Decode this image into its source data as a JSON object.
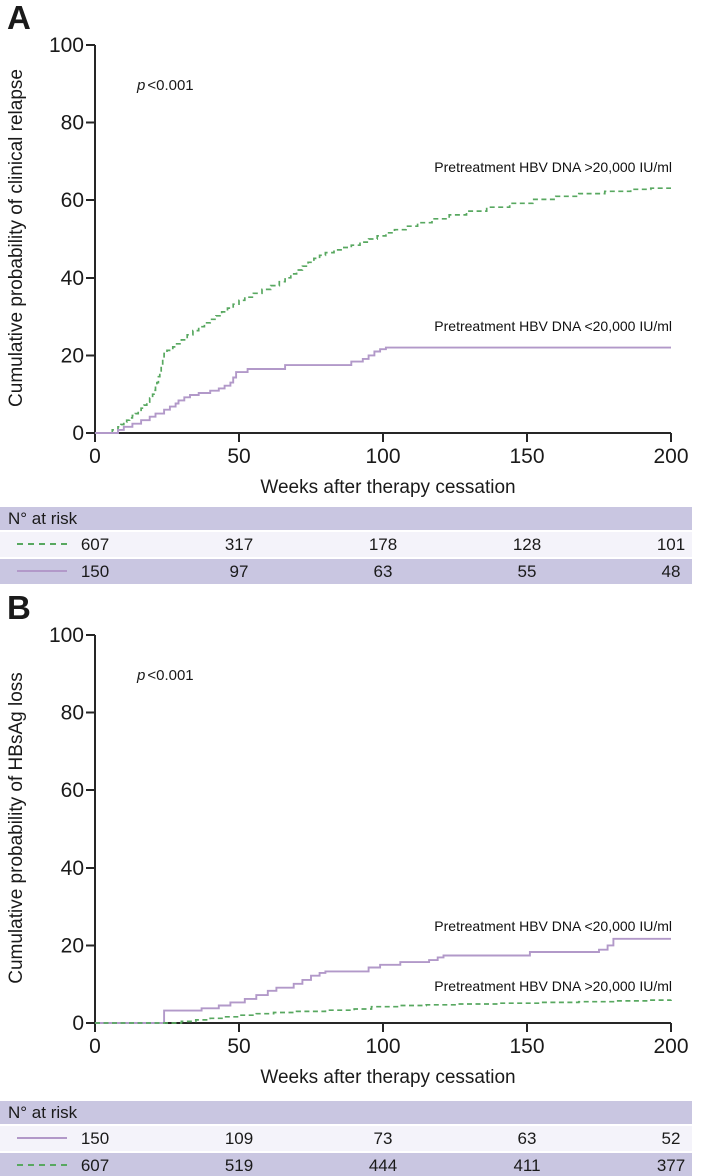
{
  "chart_data": [
    {
      "type": "line",
      "subtype": "kaplan-meier-step",
      "panel": "A",
      "xlabel": "Weeks after therapy cessation",
      "ylabel": "Cumulative probability of clinical relapse",
      "p_label": {
        "italic": "p",
        "text": "<0.001"
      },
      "xlim": [
        0,
        200
      ],
      "ylim": [
        0,
        100
      ],
      "x_ticks": [
        0,
        50,
        100,
        150,
        200
      ],
      "y_ticks": [
        0,
        20,
        40,
        60,
        80,
        100
      ],
      "grid": false,
      "legend_position": "inline-annotations",
      "series": [
        {
          "name": "Pretreatment HBV DNA >20,000 IU/ml",
          "color": "#58a860",
          "style": "dashed",
          "label_y": 68.5,
          "points": [
            [
              0,
              0
            ],
            [
              4,
              0
            ],
            [
              6,
              0.8
            ],
            [
              8,
              1.6
            ],
            [
              9,
              2.2
            ],
            [
              10,
              2.8
            ],
            [
              11,
              3.3
            ],
            [
              12,
              3.9
            ],
            [
              13,
              4.5
            ],
            [
              14,
              5
            ],
            [
              15,
              5.6
            ],
            [
              16,
              6.4
            ],
            [
              17,
              7.2
            ],
            [
              18,
              8
            ],
            [
              19,
              9
            ],
            [
              20,
              10
            ],
            [
              20.5,
              11
            ],
            [
              21,
              12
            ],
            [
              21.5,
              13
            ],
            [
              22,
              14.5
            ],
            [
              22.5,
              16
            ],
            [
              23,
              17.5
            ],
            [
              23.5,
              19
            ],
            [
              24,
              20.5
            ],
            [
              25,
              21.3
            ],
            [
              27,
              22.2
            ],
            [
              28,
              23
            ],
            [
              30,
              24
            ],
            [
              32,
              25.3
            ],
            [
              34,
              26.4
            ],
            [
              36,
              27.4
            ],
            [
              38,
              28.4
            ],
            [
              40,
              29.3
            ],
            [
              42,
              30.2
            ],
            [
              44,
              31.2
            ],
            [
              46,
              32.2
            ],
            [
              48,
              33.2
            ],
            [
              50,
              34.2
            ],
            [
              52,
              35
            ],
            [
              55,
              36
            ],
            [
              58,
              37
            ],
            [
              61,
              38
            ],
            [
              64,
              39
            ],
            [
              66,
              40
            ],
            [
              68,
              41
            ],
            [
              70,
              42
            ],
            [
              72,
              43
            ],
            [
              74,
              44
            ],
            [
              76,
              45
            ],
            [
              78,
              45.8
            ],
            [
              80,
              46.5
            ],
            [
              83,
              47.2
            ],
            [
              86,
              47.8
            ],
            [
              89,
              48.4
            ],
            [
              92,
              49.2
            ],
            [
              95,
              50
            ],
            [
              98,
              50.8
            ],
            [
              101,
              51.6
            ],
            [
              104,
              52.4
            ],
            [
              108,
              53.3
            ],
            [
              112,
              54.2
            ],
            [
              117,
              55.2
            ],
            [
              123,
              56.2
            ],
            [
              129,
              57.2
            ],
            [
              136,
              58.2
            ],
            [
              144,
              59.2
            ],
            [
              152,
              60.2
            ],
            [
              160,
              61
            ],
            [
              168,
              61.7
            ],
            [
              177,
              62.3
            ],
            [
              186,
              62.8
            ],
            [
              193,
              63.1
            ],
            [
              200,
              63.1
            ]
          ]
        },
        {
          "name": "Pretreatment HBV DNA <20,000 IU/ml",
          "color": "#b299c9",
          "style": "solid",
          "label_y": 27.5,
          "points": [
            [
              0,
              0
            ],
            [
              7,
              0
            ],
            [
              8,
              0.8
            ],
            [
              10,
              1.6
            ],
            [
              13,
              2.4
            ],
            [
              16,
              3.3
            ],
            [
              19,
              4.2
            ],
            [
              21,
              5
            ],
            [
              24,
              6
            ],
            [
              26,
              6.8
            ],
            [
              28,
              7.6
            ],
            [
              29,
              8.4
            ],
            [
              31,
              9.2
            ],
            [
              33,
              9.8
            ],
            [
              36,
              10.3
            ],
            [
              40,
              10.9
            ],
            [
              43,
              11.5
            ],
            [
              45,
              12.2
            ],
            [
              47,
              13
            ],
            [
              48,
              14.3
            ],
            [
              49,
              15.7
            ],
            [
              53,
              16.5
            ],
            [
              66,
              17.5
            ],
            [
              89,
              18.4
            ],
            [
              93,
              19.1
            ],
            [
              95,
              20
            ],
            [
              97,
              21
            ],
            [
              99,
              21.6
            ],
            [
              101,
              22
            ],
            [
              200,
              22
            ]
          ]
        }
      ],
      "risk_table": {
        "header": "N° at risk",
        "columns": [
          0,
          50,
          100,
          150,
          200
        ],
        "rows": [
          {
            "values": [
              "607",
              "317",
              "178",
              "128",
              "101"
            ]
          },
          {
            "values": [
              "150",
              "97",
              "63",
              "55",
              "48"
            ]
          }
        ]
      }
    },
    {
      "type": "line",
      "subtype": "kaplan-meier-step",
      "panel": "B",
      "xlabel": "Weeks after therapy cessation",
      "ylabel": "Cumulative probability of HBsAg loss",
      "p_label": {
        "italic": "p",
        "text": "<0.001"
      },
      "xlim": [
        0,
        200
      ],
      "ylim": [
        0,
        100
      ],
      "x_ticks": [
        0,
        50,
        100,
        150,
        200
      ],
      "y_ticks": [
        0,
        20,
        40,
        60,
        80,
        100
      ],
      "grid": false,
      "legend_position": "inline-annotations",
      "series": [
        {
          "name": "Pretreatment HBV DNA <20,000 IU/ml",
          "color": "#b299c9",
          "style": "solid",
          "label_y": 25,
          "points": [
            [
              0,
              0
            ],
            [
              23,
              0
            ],
            [
              24,
              3.2
            ],
            [
              37,
              3.8
            ],
            [
              43,
              4.5
            ],
            [
              47,
              5.3
            ],
            [
              52,
              6.2
            ],
            [
              56,
              7.2
            ],
            [
              60,
              8.3
            ],
            [
              63,
              9.1
            ],
            [
              69,
              10.1
            ],
            [
              72,
              11.1
            ],
            [
              75,
              12.2
            ],
            [
              78,
              12.9
            ],
            [
              80,
              13.3
            ],
            [
              95,
              14.3
            ],
            [
              99,
              15
            ],
            [
              106,
              15.7
            ],
            [
              116,
              16.2
            ],
            [
              119,
              16.9
            ],
            [
              121,
              17.4
            ],
            [
              151,
              18.3
            ],
            [
              175,
              18.9
            ],
            [
              178,
              20
            ],
            [
              180,
              21.7
            ],
            [
              200,
              21.7
            ]
          ]
        },
        {
          "name": "Pretreatment HBV DNA >20,000 IU/ml",
          "color": "#58a860",
          "style": "dashed",
          "label_y": 9.5,
          "points": [
            [
              0,
              0
            ],
            [
              28,
              0
            ],
            [
              30,
              0.4
            ],
            [
              35,
              0.8
            ],
            [
              40,
              1.2
            ],
            [
              45,
              1.6
            ],
            [
              50,
              2
            ],
            [
              56,
              2.4
            ],
            [
              62,
              2.7
            ],
            [
              70,
              3
            ],
            [
              80,
              3.3
            ],
            [
              90,
              3.6
            ],
            [
              96,
              4.2
            ],
            [
              105,
              4.5
            ],
            [
              115,
              4.7
            ],
            [
              125,
              4.9
            ],
            [
              140,
              5.1
            ],
            [
              155,
              5.3
            ],
            [
              168,
              5.5
            ],
            [
              180,
              5.7
            ],
            [
              192,
              5.9
            ],
            [
              200,
              6
            ]
          ]
        }
      ],
      "risk_table": {
        "header": "N° at risk",
        "columns": [
          0,
          50,
          100,
          150,
          200
        ],
        "rows": [
          {
            "values": [
              "150",
              "109",
              "73",
              "63",
              "52"
            ]
          },
          {
            "values": [
              "607",
              "519",
              "444",
              "411",
              "377"
            ]
          }
        ]
      }
    }
  ]
}
